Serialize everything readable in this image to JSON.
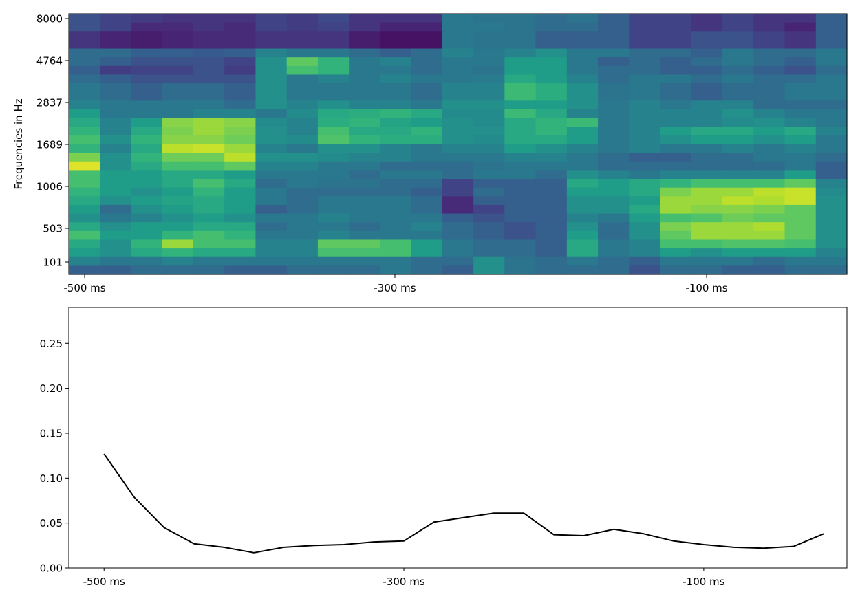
{
  "chart_data": [
    {
      "type": "heatmap",
      "ylabel": "Frequencies in Hz",
      "xlabel": "",
      "x_tick_labels": [
        "-500 ms",
        "-300 ms",
        "-100 ms"
      ],
      "y_tick_labels": [
        "8000",
        "4764",
        "2837",
        "1689",
        "1006",
        "503",
        "101"
      ],
      "colormap": "viridis",
      "n_time_bins": 25,
      "n_freq_bins": 30,
      "intensity_rows_top_to_bottom": [
        [
          0.25,
          0.2,
          0.18,
          0.15,
          0.15,
          0.15,
          0.2,
          0.18,
          0.22,
          0.15,
          0.15,
          0.15,
          0.4,
          0.38,
          0.38,
          0.35,
          0.38,
          0.3,
          0.2,
          0.2,
          0.15,
          0.2,
          0.15,
          0.15,
          0.3
        ],
        [
          0.25,
          0.2,
          0.12,
          0.12,
          0.15,
          0.12,
          0.2,
          0.18,
          0.2,
          0.15,
          0.1,
          0.1,
          0.4,
          0.4,
          0.38,
          0.35,
          0.35,
          0.3,
          0.2,
          0.2,
          0.15,
          0.2,
          0.15,
          0.1,
          0.3
        ],
        [
          0.15,
          0.1,
          0.08,
          0.1,
          0.12,
          0.12,
          0.15,
          0.15,
          0.15,
          0.08,
          0.05,
          0.05,
          0.4,
          0.38,
          0.38,
          0.3,
          0.3,
          0.3,
          0.2,
          0.2,
          0.25,
          0.25,
          0.2,
          0.15,
          0.3
        ],
        [
          0.15,
          0.1,
          0.08,
          0.1,
          0.12,
          0.12,
          0.15,
          0.15,
          0.15,
          0.08,
          0.05,
          0.05,
          0.4,
          0.38,
          0.38,
          0.3,
          0.3,
          0.3,
          0.2,
          0.2,
          0.25,
          0.25,
          0.2,
          0.15,
          0.3
        ],
        [
          0.35,
          0.35,
          0.3,
          0.3,
          0.28,
          0.3,
          0.45,
          0.4,
          0.4,
          0.35,
          0.3,
          0.35,
          0.45,
          0.4,
          0.45,
          0.5,
          0.4,
          0.4,
          0.35,
          0.35,
          0.3,
          0.4,
          0.35,
          0.35,
          0.4
        ],
        [
          0.35,
          0.3,
          0.25,
          0.25,
          0.25,
          0.2,
          0.5,
          0.75,
          0.65,
          0.4,
          0.45,
          0.35,
          0.4,
          0.4,
          0.55,
          0.55,
          0.4,
          0.3,
          0.35,
          0.3,
          0.35,
          0.4,
          0.35,
          0.3,
          0.4
        ],
        [
          0.3,
          0.18,
          0.2,
          0.2,
          0.25,
          0.18,
          0.5,
          0.7,
          0.65,
          0.4,
          0.4,
          0.35,
          0.4,
          0.38,
          0.55,
          0.55,
          0.4,
          0.35,
          0.35,
          0.3,
          0.3,
          0.35,
          0.3,
          0.25,
          0.35
        ],
        [
          0.35,
          0.3,
          0.25,
          0.25,
          0.25,
          0.25,
          0.5,
          0.4,
          0.45,
          0.4,
          0.45,
          0.4,
          0.4,
          0.42,
          0.6,
          0.55,
          0.45,
          0.35,
          0.4,
          0.4,
          0.35,
          0.4,
          0.35,
          0.35,
          0.4
        ],
        [
          0.4,
          0.35,
          0.3,
          0.35,
          0.35,
          0.3,
          0.5,
          0.4,
          0.4,
          0.4,
          0.4,
          0.35,
          0.45,
          0.45,
          0.68,
          0.62,
          0.5,
          0.38,
          0.4,
          0.35,
          0.3,
          0.35,
          0.35,
          0.4,
          0.4
        ],
        [
          0.4,
          0.35,
          0.3,
          0.35,
          0.35,
          0.3,
          0.5,
          0.4,
          0.4,
          0.4,
          0.4,
          0.35,
          0.45,
          0.45,
          0.68,
          0.62,
          0.5,
          0.38,
          0.4,
          0.35,
          0.3,
          0.35,
          0.35,
          0.4,
          0.4
        ],
        [
          0.45,
          0.4,
          0.4,
          0.4,
          0.4,
          0.35,
          0.5,
          0.45,
          0.5,
          0.45,
          0.45,
          0.4,
          0.5,
          0.5,
          0.55,
          0.55,
          0.5,
          0.4,
          0.45,
          0.4,
          0.45,
          0.45,
          0.35,
          0.35,
          0.35
        ],
        [
          0.55,
          0.4,
          0.4,
          0.4,
          0.45,
          0.45,
          0.4,
          0.48,
          0.6,
          0.62,
          0.65,
          0.6,
          0.48,
          0.48,
          0.68,
          0.6,
          0.45,
          0.4,
          0.45,
          0.45,
          0.45,
          0.5,
          0.45,
          0.4,
          0.4
        ],
        [
          0.6,
          0.45,
          0.55,
          0.82,
          0.85,
          0.82,
          0.48,
          0.45,
          0.62,
          0.65,
          0.58,
          0.55,
          0.5,
          0.48,
          0.6,
          0.65,
          0.68,
          0.4,
          0.45,
          0.45,
          0.45,
          0.48,
          0.5,
          0.45,
          0.4
        ],
        [
          0.65,
          0.45,
          0.6,
          0.8,
          0.85,
          0.8,
          0.5,
          0.45,
          0.7,
          0.6,
          0.6,
          0.65,
          0.5,
          0.5,
          0.6,
          0.65,
          0.55,
          0.4,
          0.45,
          0.55,
          0.6,
          0.6,
          0.55,
          0.6,
          0.45
        ],
        [
          0.7,
          0.5,
          0.65,
          0.82,
          0.82,
          0.78,
          0.5,
          0.48,
          0.72,
          0.65,
          0.62,
          0.62,
          0.5,
          0.48,
          0.6,
          0.6,
          0.55,
          0.4,
          0.45,
          0.5,
          0.55,
          0.55,
          0.5,
          0.55,
          0.4
        ],
        [
          0.65,
          0.45,
          0.6,
          0.9,
          0.92,
          0.85,
          0.45,
          0.4,
          0.5,
          0.5,
          0.45,
          0.4,
          0.45,
          0.45,
          0.55,
          0.5,
          0.45,
          0.4,
          0.45,
          0.4,
          0.4,
          0.45,
          0.4,
          0.45,
          0.4
        ],
        [
          0.8,
          0.5,
          0.65,
          0.78,
          0.78,
          0.9,
          0.5,
          0.5,
          0.48,
          0.45,
          0.45,
          0.4,
          0.4,
          0.4,
          0.45,
          0.45,
          0.4,
          0.35,
          0.3,
          0.3,
          0.35,
          0.35,
          0.4,
          0.4,
          0.35
        ],
        [
          0.95,
          0.5,
          0.6,
          0.7,
          0.7,
          0.75,
          0.45,
          0.45,
          0.4,
          0.4,
          0.35,
          0.35,
          0.35,
          0.38,
          0.4,
          0.4,
          0.4,
          0.35,
          0.35,
          0.35,
          0.35,
          0.35,
          0.35,
          0.4,
          0.3
        ],
        [
          0.7,
          0.55,
          0.55,
          0.6,
          0.6,
          0.55,
          0.4,
          0.4,
          0.4,
          0.35,
          0.4,
          0.4,
          0.35,
          0.4,
          0.4,
          0.35,
          0.5,
          0.45,
          0.4,
          0.45,
          0.45,
          0.45,
          0.45,
          0.55,
          0.3
        ],
        [
          0.7,
          0.55,
          0.55,
          0.6,
          0.7,
          0.6,
          0.35,
          0.4,
          0.38,
          0.38,
          0.35,
          0.35,
          0.2,
          0.3,
          0.3,
          0.3,
          0.6,
          0.55,
          0.6,
          0.65,
          0.7,
          0.7,
          0.7,
          0.75,
          0.45
        ],
        [
          0.65,
          0.55,
          0.5,
          0.55,
          0.65,
          0.55,
          0.4,
          0.35,
          0.35,
          0.35,
          0.35,
          0.3,
          0.2,
          0.35,
          0.3,
          0.3,
          0.55,
          0.55,
          0.6,
          0.8,
          0.85,
          0.85,
          0.9,
          0.92,
          0.48
        ],
        [
          0.6,
          0.5,
          0.55,
          0.58,
          0.6,
          0.55,
          0.4,
          0.35,
          0.4,
          0.4,
          0.4,
          0.35,
          0.12,
          0.3,
          0.3,
          0.3,
          0.5,
          0.5,
          0.55,
          0.85,
          0.85,
          0.9,
          0.88,
          0.92,
          0.5
        ],
        [
          0.55,
          0.35,
          0.5,
          0.55,
          0.6,
          0.55,
          0.3,
          0.35,
          0.4,
          0.4,
          0.4,
          0.35,
          0.12,
          0.2,
          0.3,
          0.3,
          0.5,
          0.5,
          0.6,
          0.85,
          0.82,
          0.82,
          0.8,
          0.75,
          0.5
        ],
        [
          0.5,
          0.4,
          0.45,
          0.5,
          0.55,
          0.5,
          0.4,
          0.4,
          0.45,
          0.4,
          0.4,
          0.4,
          0.3,
          0.25,
          0.3,
          0.3,
          0.45,
          0.4,
          0.55,
          0.7,
          0.72,
          0.78,
          0.75,
          0.75,
          0.5
        ],
        [
          0.6,
          0.5,
          0.55,
          0.55,
          0.6,
          0.6,
          0.35,
          0.4,
          0.4,
          0.35,
          0.4,
          0.45,
          0.35,
          0.3,
          0.25,
          0.3,
          0.5,
          0.35,
          0.5,
          0.8,
          0.85,
          0.85,
          0.88,
          0.75,
          0.5
        ],
        [
          0.7,
          0.55,
          0.55,
          0.65,
          0.7,
          0.65,
          0.4,
          0.4,
          0.45,
          0.4,
          0.4,
          0.4,
          0.35,
          0.3,
          0.25,
          0.3,
          0.55,
          0.35,
          0.5,
          0.75,
          0.85,
          0.85,
          0.85,
          0.75,
          0.5
        ],
        [
          0.6,
          0.5,
          0.65,
          0.85,
          0.7,
          0.7,
          0.45,
          0.45,
          0.75,
          0.75,
          0.7,
          0.55,
          0.4,
          0.35,
          0.35,
          0.3,
          0.6,
          0.4,
          0.45,
          0.7,
          0.7,
          0.72,
          0.72,
          0.7,
          0.5
        ],
        [
          0.55,
          0.5,
          0.6,
          0.65,
          0.6,
          0.6,
          0.45,
          0.45,
          0.7,
          0.7,
          0.7,
          0.55,
          0.4,
          0.35,
          0.35,
          0.3,
          0.6,
          0.4,
          0.45,
          0.55,
          0.5,
          0.55,
          0.55,
          0.55,
          0.45
        ],
        [
          0.45,
          0.4,
          0.4,
          0.45,
          0.4,
          0.4,
          0.4,
          0.4,
          0.4,
          0.4,
          0.4,
          0.35,
          0.35,
          0.5,
          0.38,
          0.35,
          0.4,
          0.35,
          0.3,
          0.4,
          0.4,
          0.4,
          0.35,
          0.4,
          0.4
        ],
        [
          0.3,
          0.3,
          0.35,
          0.35,
          0.35,
          0.3,
          0.3,
          0.35,
          0.35,
          0.35,
          0.4,
          0.35,
          0.3,
          0.5,
          0.38,
          0.35,
          0.35,
          0.35,
          0.25,
          0.35,
          0.35,
          0.3,
          0.3,
          0.35,
          0.35
        ]
      ]
    },
    {
      "type": "line",
      "xlabel": "",
      "ylabel": "",
      "x_tick_labels": [
        "-500 ms",
        "-300 ms",
        "-100 ms"
      ],
      "y_tick_labels": [
        "0.00",
        "0.05",
        "0.10",
        "0.15",
        "0.20",
        "0.25"
      ],
      "x": [
        -500,
        -480,
        -460,
        -440,
        -420,
        -400,
        -380,
        -360,
        -340,
        -320,
        -300,
        -280,
        -260,
        -240,
        -220,
        -200,
        -180,
        -160,
        -140,
        -120,
        -100,
        -80,
        -60,
        -40,
        -20
      ],
      "values": [
        0.127,
        0.079,
        0.045,
        0.027,
        0.023,
        0.017,
        0.023,
        0.025,
        0.026,
        0.029,
        0.03,
        0.051,
        0.056,
        0.061,
        0.061,
        0.037,
        0.036,
        0.043,
        0.038,
        0.03,
        0.026,
        0.023,
        0.022,
        0.024,
        0.038
      ],
      "xlim": [
        -523.5,
        -4.5
      ],
      "ylim": [
        0,
        0.29
      ],
      "color": "#000000"
    }
  ]
}
